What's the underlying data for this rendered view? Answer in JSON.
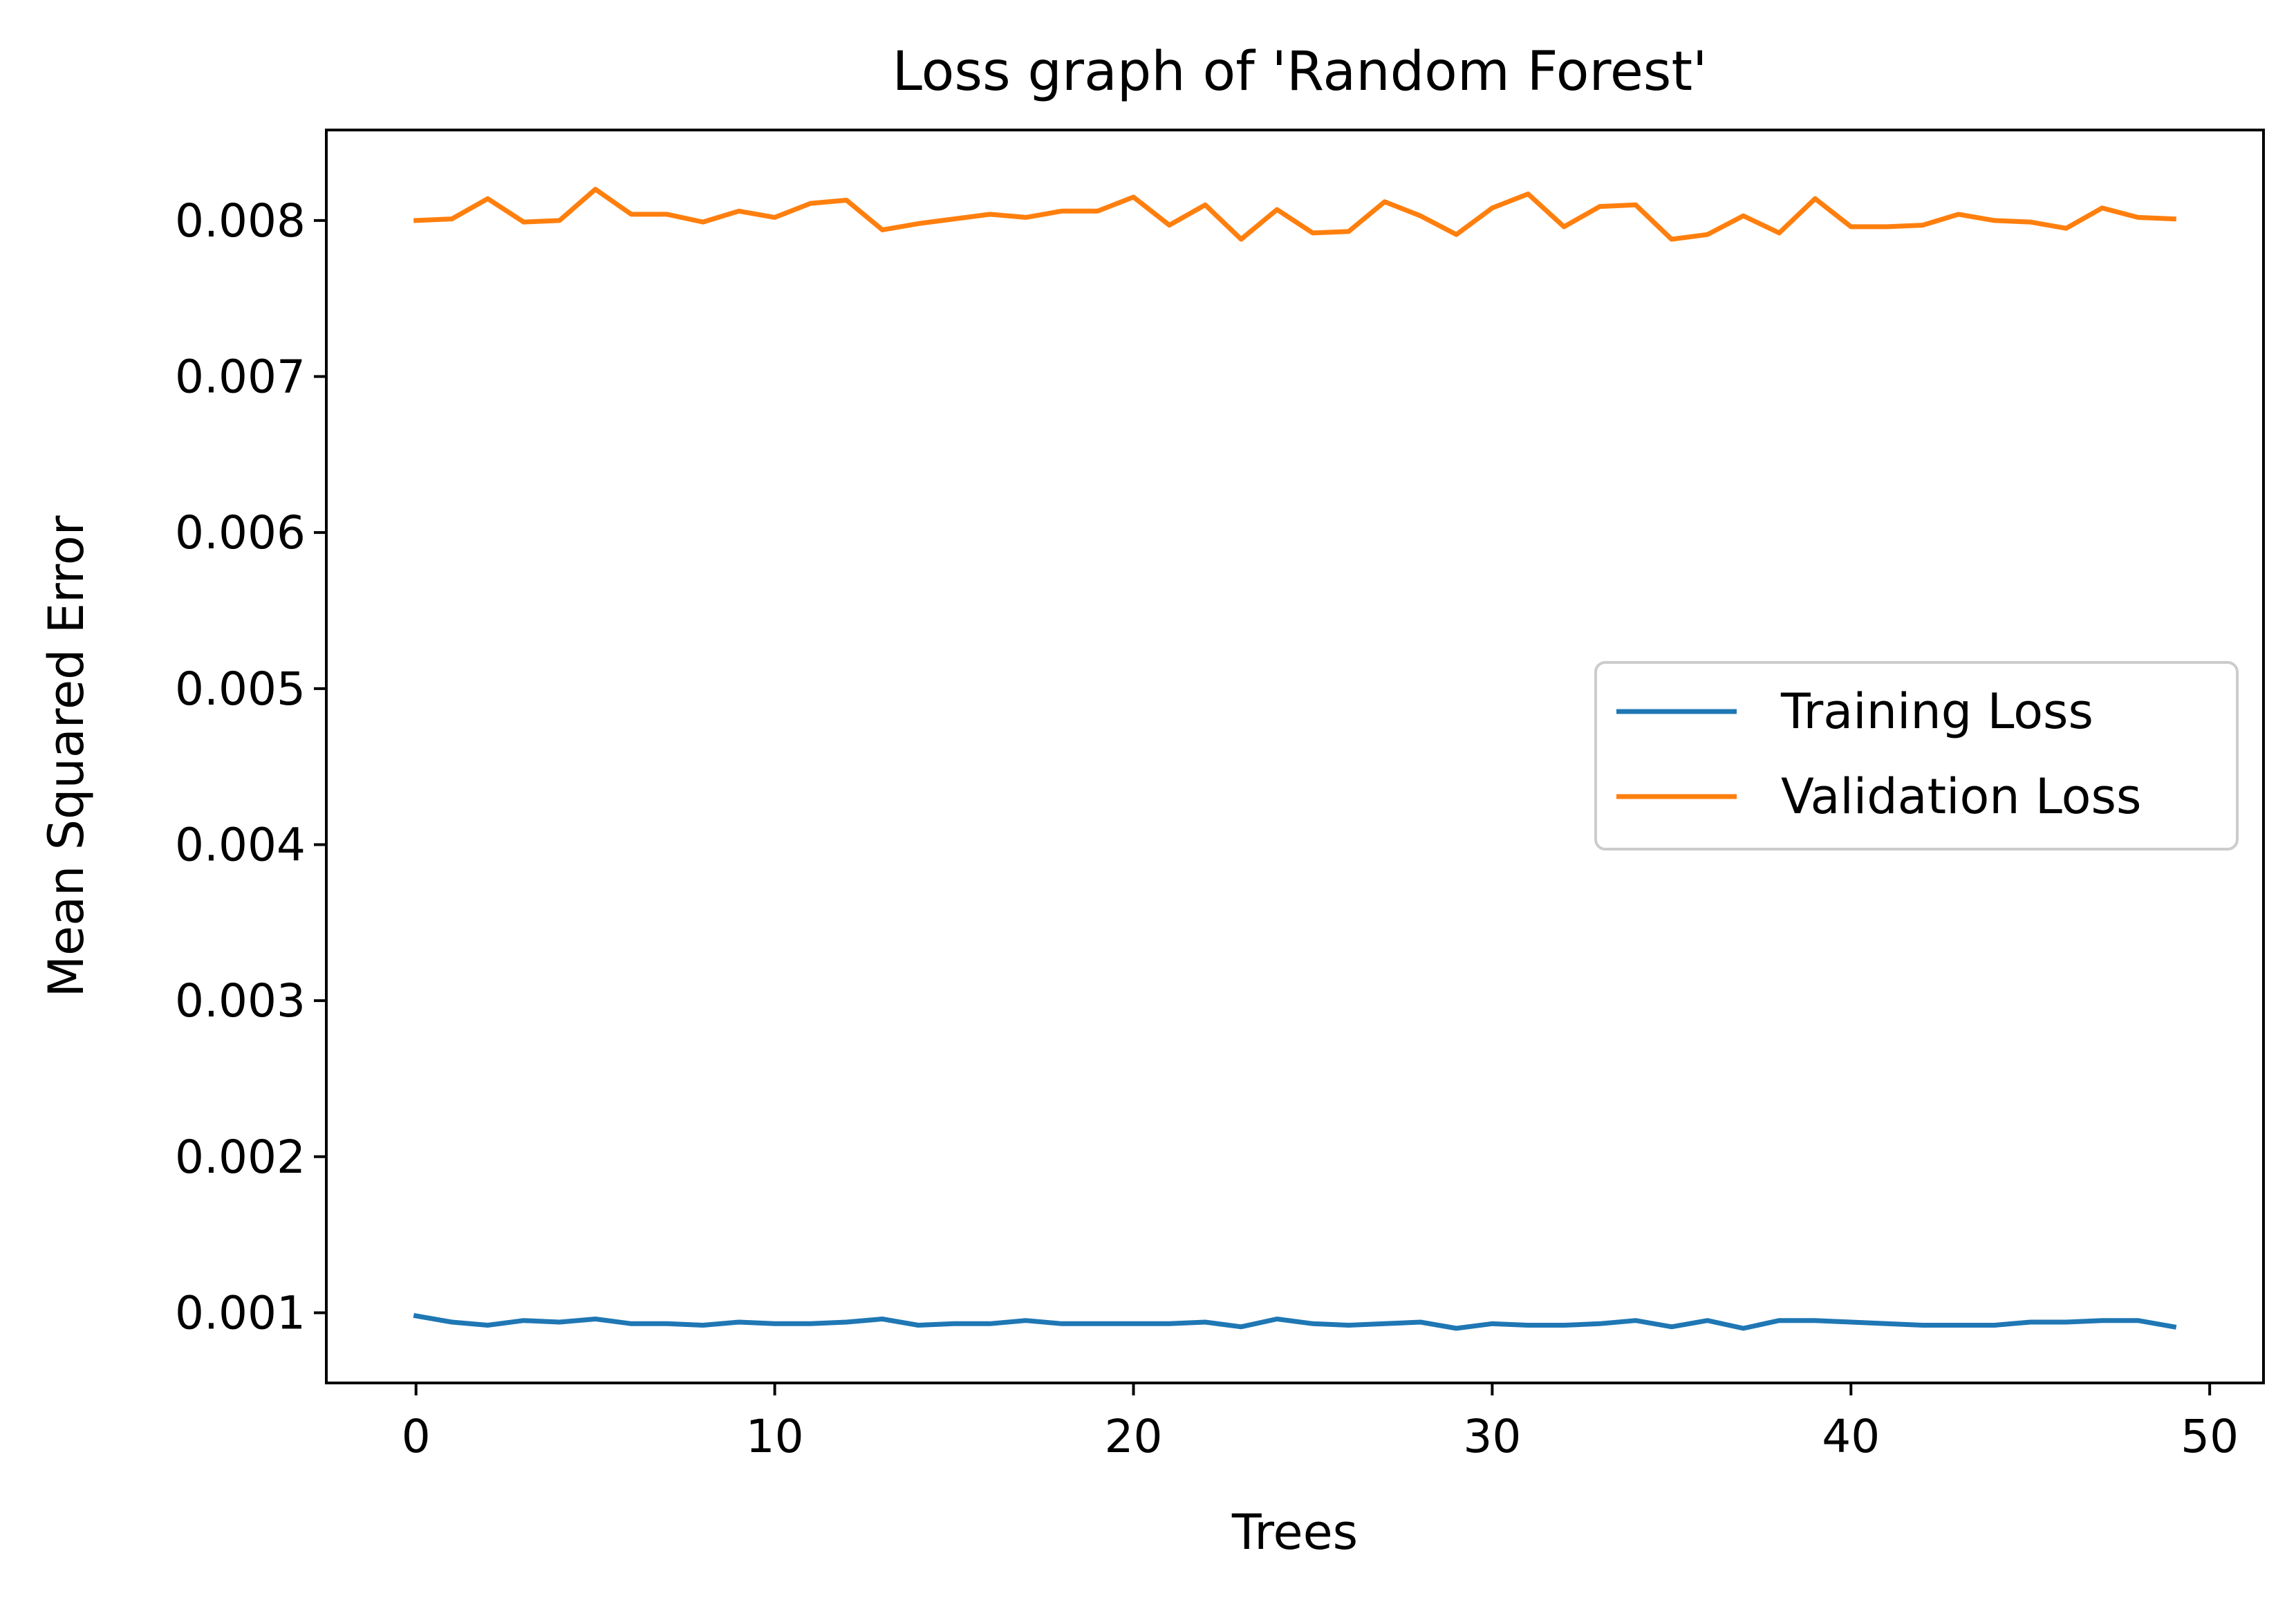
{
  "chart_data": {
    "type": "line",
    "title": "Loss graph of 'Random Forest'",
    "xlabel": "Trees",
    "ylabel": "Mean Squared Error",
    "xlim": [
      -2.5,
      51.5
    ],
    "ylim": [
      0.00055,
      0.00858
    ],
    "xticks": [
      0,
      10,
      20,
      30,
      40,
      50
    ],
    "yticks": [
      0.001,
      0.002,
      0.003,
      0.004,
      0.005,
      0.006,
      0.007,
      0.008
    ],
    "ytick_labels": [
      "0.001",
      "0.002",
      "0.003",
      "0.004",
      "0.005",
      "0.006",
      "0.007",
      "0.008"
    ],
    "grid": false,
    "legend_position": "center-right",
    "x": [
      0,
      1,
      2,
      3,
      4,
      5,
      6,
      7,
      8,
      9,
      10,
      11,
      12,
      13,
      14,
      15,
      16,
      17,
      18,
      19,
      20,
      21,
      22,
      23,
      24,
      25,
      26,
      27,
      28,
      29,
      30,
      31,
      32,
      33,
      34,
      35,
      36,
      37,
      38,
      39,
      40,
      41,
      42,
      43,
      44,
      45,
      46,
      47,
      48,
      49
    ],
    "series": [
      {
        "name": "Training Loss",
        "color": "#1f77b4",
        "values": [
          0.00098,
          0.00094,
          0.00092,
          0.00095,
          0.00094,
          0.00096,
          0.00093,
          0.00093,
          0.00092,
          0.00094,
          0.00093,
          0.00093,
          0.00094,
          0.00096,
          0.00092,
          0.00093,
          0.00093,
          0.00095,
          0.00093,
          0.00093,
          0.00093,
          0.00093,
          0.00094,
          0.00091,
          0.00096,
          0.00093,
          0.00092,
          0.00093,
          0.00094,
          0.0009,
          0.00093,
          0.00092,
          0.00092,
          0.00093,
          0.00095,
          0.00091,
          0.00095,
          0.0009,
          0.00095,
          0.00095,
          0.00094,
          0.00093,
          0.00092,
          0.00092,
          0.00092,
          0.00094,
          0.00094,
          0.00095,
          0.00095,
          0.00091
        ]
      },
      {
        "name": "Validation Loss",
        "color": "#ff7f0e",
        "values": [
          0.008,
          0.00801,
          0.00814,
          0.00799,
          0.008,
          0.0082,
          0.00804,
          0.00804,
          0.00799,
          0.00806,
          0.00802,
          0.00811,
          0.00813,
          0.00794,
          0.00798,
          0.00801,
          0.00804,
          0.00802,
          0.00806,
          0.00806,
          0.00815,
          0.00797,
          0.0081,
          0.00788,
          0.00807,
          0.00792,
          0.00793,
          0.00812,
          0.00803,
          0.00791,
          0.00808,
          0.00817,
          0.00796,
          0.00809,
          0.0081,
          0.00788,
          0.00791,
          0.00803,
          0.00792,
          0.00814,
          0.00796,
          0.00796,
          0.00797,
          0.00804,
          0.008,
          0.00799,
          0.00795,
          0.00808,
          0.00802,
          0.00801
        ]
      }
    ]
  }
}
